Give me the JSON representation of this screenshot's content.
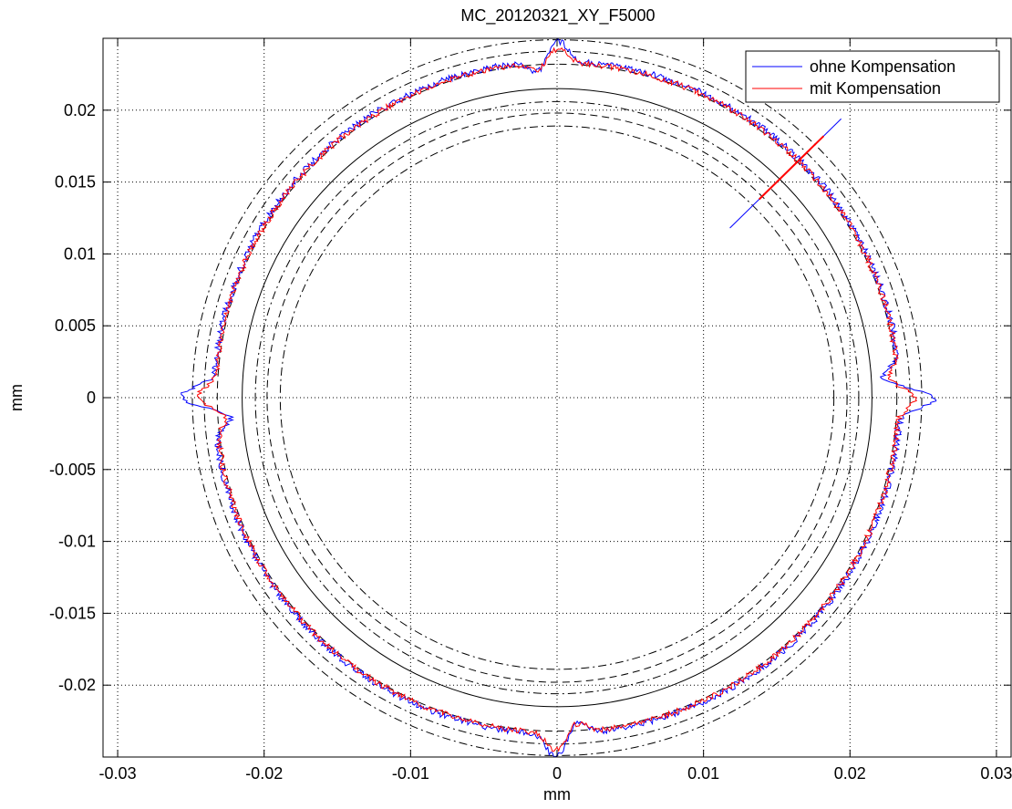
{
  "chart_data": {
    "type": "line",
    "title": "MC_20120321_XY_F5000",
    "xlabel": "mm",
    "ylabel": "mm",
    "xlim": [
      -0.031,
      0.031
    ],
    "ylim": [
      -0.025,
      0.025
    ],
    "grid": true,
    "legend_position": "top-right",
    "x_ticks": [
      -0.03,
      -0.02,
      -0.01,
      0,
      0.01,
      0.02,
      0.03
    ],
    "x_tick_labels": [
      "-0.03",
      "-0.02",
      "-0.01",
      "0",
      "0.01",
      "0.02",
      "0.03"
    ],
    "y_ticks": [
      0.02,
      0.015,
      0.01,
      0.005,
      0,
      -0.005,
      -0.01,
      -0.015,
      -0.02
    ],
    "y_tick_labels": [
      "0.02",
      "0.015",
      "0.01",
      "0.005",
      "0",
      "-0.005",
      "-0.01",
      "-0.015",
      "-0.02"
    ],
    "series": [
      {
        "name": "ohne Kompensation",
        "color": "#0000ff",
        "mean_radius": 0.0234,
        "noise_amplitude": 0.00022,
        "reversal_spikes": [
          {
            "angle_deg": 0,
            "peak_radius": 0.0259
          },
          {
            "angle_deg": 90,
            "peak_radius": 0.0249
          },
          {
            "angle_deg": 180,
            "peak_radius": 0.0258
          },
          {
            "angle_deg": 270,
            "peak_radius": 0.0251
          }
        ],
        "start_segment": {
          "from": [
            0.0118,
            0.0118
          ],
          "to": [
            0.0194,
            0.0194
          ]
        }
      },
      {
        "name": "mit Kompensation",
        "color": "#ff0000",
        "mean_radius": 0.0233,
        "noise_amplitude": 0.0002,
        "reversal_spikes": [
          {
            "angle_deg": 0,
            "peak_radius": 0.0245
          },
          {
            "angle_deg": 90,
            "peak_radius": 0.0243
          },
          {
            "angle_deg": 180,
            "peak_radius": 0.0246
          },
          {
            "angle_deg": 270,
            "peak_radius": 0.0246
          }
        ],
        "start_segment": {
          "from": [
            0.0138,
            0.0138
          ],
          "to": [
            0.0182,
            0.0182
          ]
        }
      }
    ],
    "reference_circles": [
      {
        "radius": 0.0215,
        "style": "solid"
      },
      {
        "radius": 0.0232,
        "style": "dashed"
      },
      {
        "radius": 0.0198,
        "style": "dashed"
      },
      {
        "radius": 0.0249,
        "style": "dash-dot"
      },
      {
        "radius": 0.0241,
        "style": "dash-dot"
      },
      {
        "radius": 0.0189,
        "style": "dash-dot"
      },
      {
        "radius": 0.0206,
        "style": "dash-dot"
      }
    ]
  }
}
